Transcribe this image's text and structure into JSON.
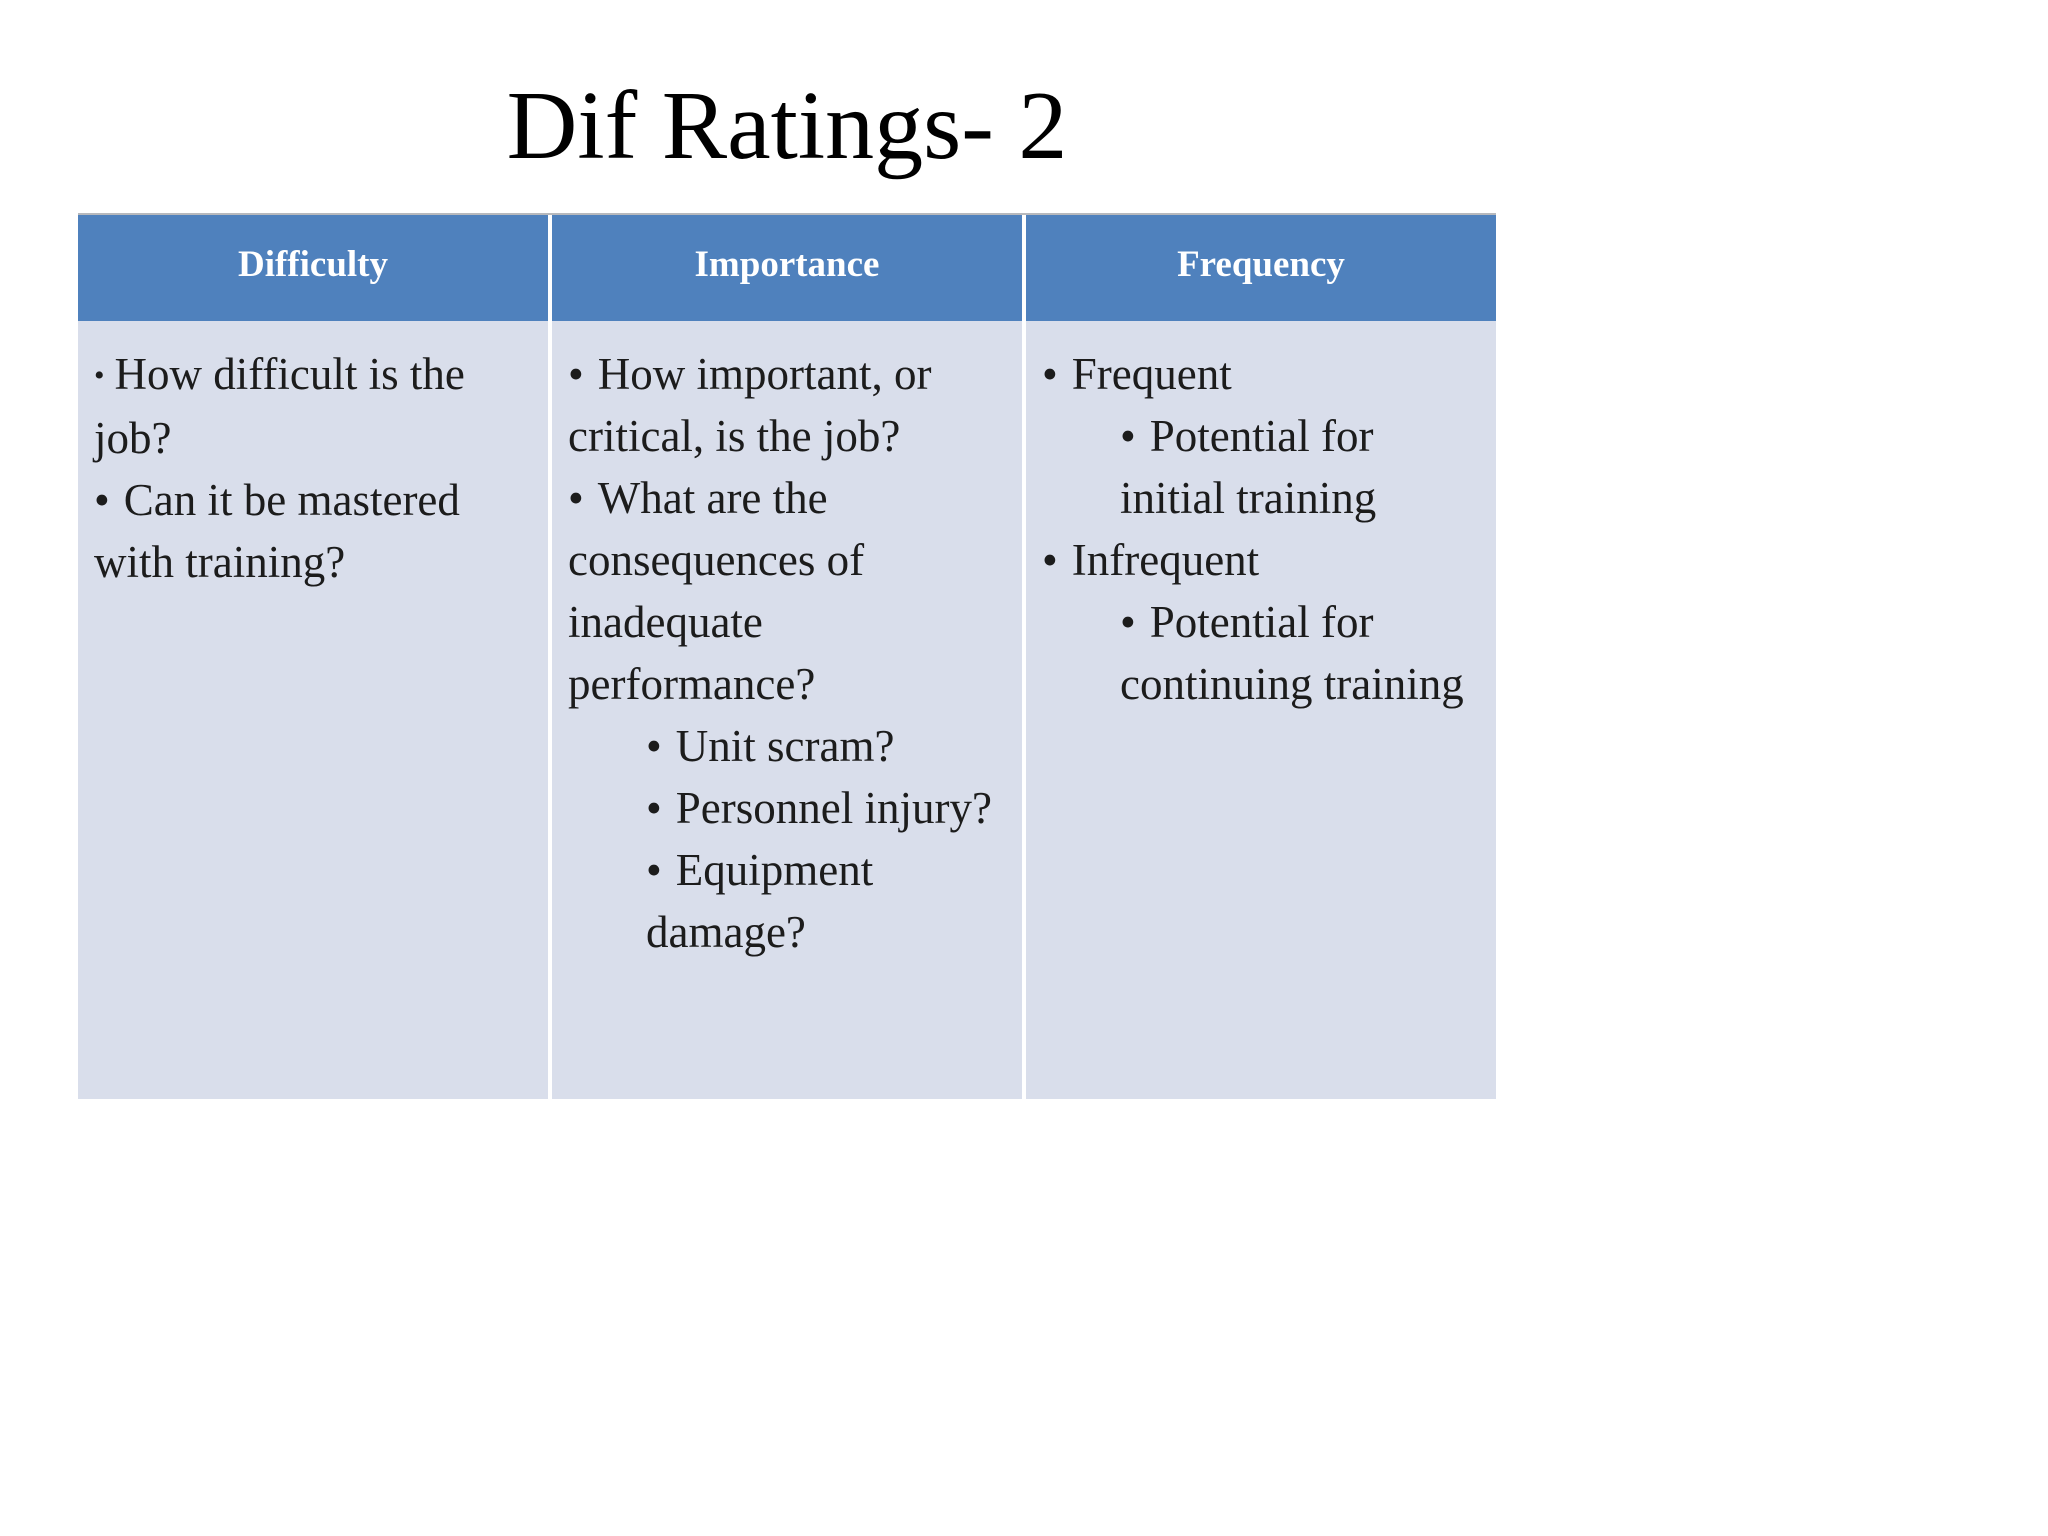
{
  "slide": {
    "title": "Dif Ratings- 2"
  },
  "glyphs": {
    "bullet": "•"
  },
  "table": {
    "colors": {
      "header_bg": "#4f81bd",
      "header_text": "#ffffff",
      "body_bg": "#d9deeb",
      "body_text": "#1c1c1c"
    },
    "columns": [
      {
        "header": "Difficulty",
        "items": [
          {
            "level": 1,
            "text": "How difficult is the job?"
          },
          {
            "level": 1,
            "text": "Can it be mastered with training?"
          }
        ]
      },
      {
        "header": "Importance",
        "items": [
          {
            "level": 1,
            "text": "How important, or critical, is the job?"
          },
          {
            "level": 1,
            "text": "What are the consequences of inadequate performance?"
          },
          {
            "level": 2,
            "text": "Unit scram?"
          },
          {
            "level": 2,
            "text": "Personnel injury?"
          },
          {
            "level": 2,
            "text": "Equipment damage?"
          }
        ]
      },
      {
        "header": "Frequency",
        "items": [
          {
            "level": 1,
            "text": "Frequent"
          },
          {
            "level": 2,
            "text": "Potential for initial training"
          },
          {
            "level": 1,
            "text": "Infrequent"
          },
          {
            "level": 2,
            "text": "Potential for continuing training"
          }
        ]
      }
    ]
  }
}
